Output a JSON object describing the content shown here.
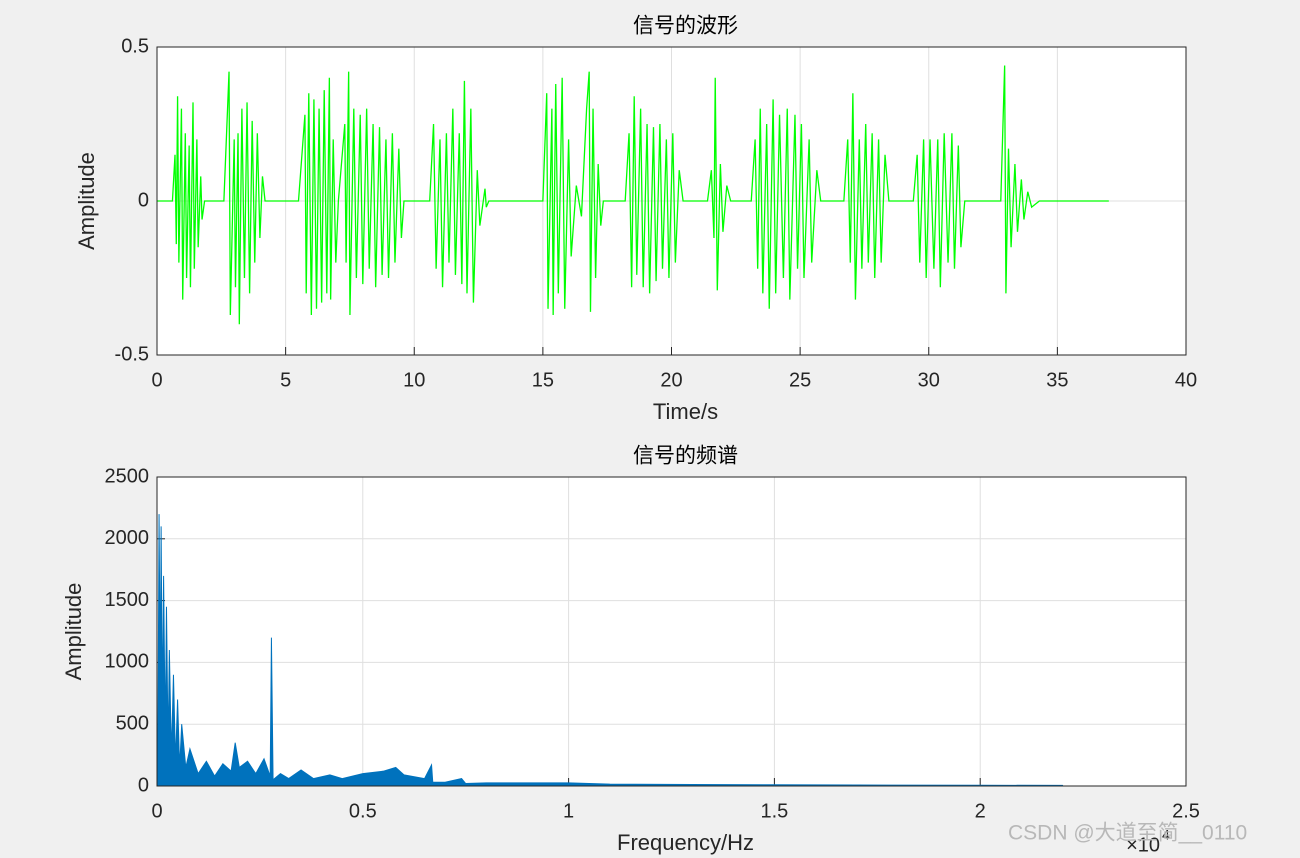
{
  "chart_data": [
    {
      "type": "line",
      "title": "信号的波形",
      "x_label": "Time/s",
      "y_label": "Amplitude",
      "xlim": [
        0,
        40
      ],
      "xticks": [
        0,
        5,
        10,
        15,
        20,
        25,
        30,
        35,
        40
      ],
      "ylim": [
        -0.5,
        0.5
      ],
      "yticks": [
        -0.5,
        0,
        0.5
      ],
      "grid": true,
      "x": [
        0,
        0.6,
        0.7,
        0.75,
        0.8,
        0.85,
        0.95,
        1.0,
        1.1,
        1.15,
        1.25,
        1.3,
        1.4,
        1.45,
        1.55,
        1.6,
        1.7,
        1.75,
        1.85,
        2.6,
        2.8,
        2.85,
        3.0,
        3.05,
        3.15,
        3.2,
        3.3,
        3.4,
        3.5,
        3.6,
        3.7,
        3.8,
        3.9,
        4.0,
        4.1,
        4.2,
        5.5,
        5.75,
        5.8,
        5.9,
        6.0,
        6.1,
        6.2,
        6.3,
        6.4,
        6.5,
        6.6,
        6.7,
        6.75,
        6.85,
        6.95,
        7.05,
        7.3,
        7.35,
        7.45,
        7.5,
        7.65,
        7.75,
        7.9,
        8.0,
        8.15,
        8.25,
        8.4,
        8.5,
        8.65,
        8.75,
        8.9,
        9.0,
        9.15,
        9.25,
        9.4,
        9.5,
        9.6,
        10.6,
        10.75,
        10.85,
        11.0,
        11.1,
        11.25,
        11.35,
        11.5,
        11.6,
        11.75,
        11.85,
        11.95,
        12.05,
        12.2,
        12.3,
        12.45,
        12.55,
        12.75,
        12.8,
        12.9,
        15.0,
        15.15,
        15.2,
        15.35,
        15.4,
        15.5,
        15.6,
        15.75,
        15.85,
        16.0,
        16.1,
        16.3,
        16.5,
        16.7,
        16.8,
        16.85,
        16.95,
        17.05,
        17.15,
        17.25,
        17.35,
        18.2,
        18.35,
        18.45,
        18.55,
        18.65,
        18.8,
        18.9,
        19.05,
        19.15,
        19.3,
        19.4,
        19.55,
        19.65,
        19.8,
        19.9,
        20.05,
        20.15,
        20.3,
        20.45,
        21.4,
        21.55,
        21.65,
        21.7,
        21.78,
        21.9,
        22.0,
        22.15,
        22.3,
        23.1,
        23.25,
        23.35,
        23.45,
        23.55,
        23.7,
        23.8,
        23.95,
        24.05,
        24.2,
        24.35,
        24.5,
        24.6,
        24.8,
        24.9,
        25.05,
        25.15,
        25.35,
        25.45,
        25.65,
        25.8,
        26.7,
        26.85,
        26.95,
        27.05,
        27.15,
        27.3,
        27.4,
        27.55,
        27.65,
        27.8,
        27.9,
        28.05,
        28.15,
        28.3,
        28.45,
        29.4,
        29.55,
        29.65,
        29.8,
        29.9,
        30.05,
        30.2,
        30.35,
        30.45,
        30.6,
        30.75,
        30.9,
        31.0,
        31.15,
        31.25,
        31.4,
        32.8,
        32.95,
        33.0,
        33.1,
        33.2,
        33.35,
        33.45,
        33.6,
        33.7,
        33.85,
        34.0,
        34.3,
        37
      ],
      "series": [
        {
          "color": "#00ff00",
          "values": [
            0,
            0,
            0.15,
            -0.14,
            0.34,
            -0.2,
            0.3,
            -0.32,
            0.22,
            -0.25,
            0.18,
            -0.28,
            0.32,
            -0.22,
            0.2,
            -0.15,
            0.08,
            -0.06,
            0,
            0,
            0.42,
            -0.37,
            0.2,
            -0.28,
            0.22,
            -0.4,
            0.3,
            -0.25,
            0.32,
            -0.3,
            0.26,
            -0.2,
            0.22,
            -0.12,
            0.08,
            0,
            0,
            0.28,
            -0.3,
            0.35,
            -0.37,
            0.33,
            -0.35,
            0.3,
            -0.33,
            0.36,
            -0.3,
            0.4,
            -0.32,
            0.2,
            -0.2,
            0,
            0.25,
            -0.2,
            0.42,
            -0.37,
            0.3,
            -0.25,
            0.28,
            -0.27,
            0.3,
            -0.22,
            0.25,
            -0.28,
            0.24,
            -0.24,
            0.2,
            -0.25,
            0.22,
            -0.2,
            0.17,
            -0.12,
            0,
            0,
            0.25,
            -0.22,
            0.2,
            -0.28,
            0.22,
            -0.2,
            0.3,
            -0.24,
            0.22,
            -0.27,
            0.39,
            -0.3,
            0.3,
            -0.33,
            0.1,
            -0.08,
            0.04,
            -0.02,
            0,
            0,
            0.35,
            -0.35,
            0.3,
            -0.37,
            0.38,
            -0.3,
            0.4,
            -0.35,
            0.2,
            -0.18,
            0.05,
            -0.05,
            0.3,
            0.42,
            -0.36,
            0.3,
            -0.25,
            0.12,
            -0.08,
            0,
            0,
            0.22,
            -0.28,
            0.34,
            -0.24,
            0.3,
            -0.28,
            0.25,
            -0.3,
            0.24,
            -0.26,
            0.25,
            -0.22,
            0.2,
            -0.25,
            0.22,
            -0.2,
            0.1,
            0,
            0,
            0.1,
            -0.12,
            0.4,
            -0.29,
            0.12,
            -0.1,
            0.05,
            0,
            0,
            0.2,
            -0.22,
            0.3,
            -0.3,
            0.25,
            -0.35,
            0.33,
            -0.3,
            0.28,
            -0.25,
            0.3,
            -0.32,
            0.28,
            -0.22,
            0.25,
            -0.25,
            0.2,
            -0.2,
            0.1,
            0,
            0,
            0.2,
            -0.2,
            0.35,
            -0.32,
            0.2,
            -0.22,
            0.25,
            -0.2,
            0.22,
            -0.25,
            0.2,
            -0.2,
            0.15,
            0,
            0,
            0.15,
            -0.2,
            0.2,
            -0.25,
            0.2,
            -0.22,
            0.2,
            -0.28,
            0.22,
            -0.2,
            0.22,
            -0.22,
            0.18,
            -0.15,
            0,
            0,
            0.44,
            -0.3,
            0.17,
            -0.15,
            0.12,
            -0.1,
            0.07,
            -0.06,
            0.03,
            -0.02,
            0,
            0
          ]
        }
      ]
    },
    {
      "type": "area",
      "title": "信号的频谱",
      "x_label": "Frequency/Hz",
      "y_label": "Amplitude",
      "x_multiplier": "×10",
      "x_multiplier_exponent": "4",
      "xlim": [
        0,
        2.5
      ],
      "xticks": [
        0,
        0.5,
        1,
        1.5,
        2,
        2.5
      ],
      "ylim": [
        0,
        2500
      ],
      "yticks": [
        0,
        500,
        1000,
        1500,
        2000,
        2500
      ],
      "grid": true,
      "x": [
        0,
        0.002,
        0.005,
        0.008,
        0.01,
        0.013,
        0.016,
        0.02,
        0.023,
        0.027,
        0.03,
        0.035,
        0.04,
        0.045,
        0.05,
        0.055,
        0.06,
        0.07,
        0.08,
        0.1,
        0.12,
        0.14,
        0.16,
        0.18,
        0.19,
        0.2,
        0.22,
        0.24,
        0.26,
        0.275,
        0.278,
        0.282,
        0.3,
        0.32,
        0.35,
        0.38,
        0.42,
        0.45,
        0.5,
        0.55,
        0.58,
        0.6,
        0.65,
        0.667,
        0.67,
        0.7,
        0.74,
        0.75,
        0.8,
        0.9,
        1.0,
        1.1,
        1.3,
        1.5,
        1.7,
        2.0,
        2.2,
        2.201
      ],
      "series": [
        {
          "color": "#0072bd",
          "values": [
            0,
            150,
            2200,
            800,
            2100,
            600,
            1700,
            400,
            1450,
            300,
            1100,
            250,
            900,
            200,
            700,
            150,
            500,
            150,
            300,
            100,
            200,
            80,
            180,
            120,
            350,
            150,
            200,
            100,
            220,
            80,
            1200,
            50,
            100,
            60,
            130,
            60,
            90,
            60,
            100,
            120,
            150,
            90,
            60,
            170,
            30,
            30,
            60,
            20,
            25,
            25,
            25,
            15,
            12,
            10,
            8,
            6,
            5,
            0
          ]
        }
      ]
    }
  ],
  "watermark": "CSDN @大道至简__0110"
}
